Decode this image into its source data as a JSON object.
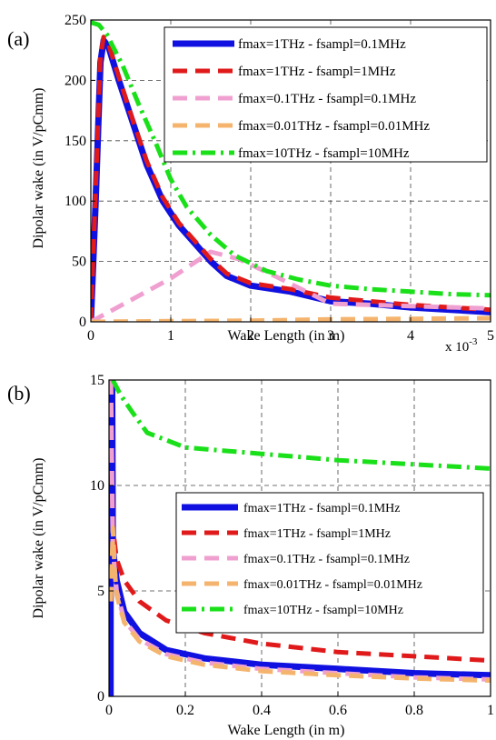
{
  "chart_data": [
    {
      "type": "line",
      "panel_label": "(a)",
      "xlabel": "Wake Length (in m)",
      "ylabel": "Dipolar wake (in  V/pCmm)",
      "x_multiplier": "x 10",
      "x_multiplier_exp": "-3",
      "xlim": [
        0,
        5
      ],
      "ylim": [
        0,
        250
      ],
      "xticks": [
        0,
        1,
        2,
        3,
        4,
        5
      ],
      "yticks": [
        0,
        50,
        100,
        150,
        200,
        250
      ],
      "grid": true,
      "legend_position": "top-right",
      "series": [
        {
          "name": "fmax=1THz - fsampl=0.1MHz",
          "color": "#1010e0",
          "style": "solid",
          "width": 7,
          "points": [
            [
              0,
              0
            ],
            [
              0.06,
              100
            ],
            [
              0.12,
              215
            ],
            [
              0.16,
              233
            ],
            [
              0.22,
              228
            ],
            [
              0.35,
              200
            ],
            [
              0.5,
              170
            ],
            [
              0.7,
              130
            ],
            [
              0.9,
              100
            ],
            [
              1.1,
              80
            ],
            [
              1.3,
              65
            ],
            [
              1.5,
              50
            ],
            [
              1.7,
              38
            ],
            [
              2,
              30
            ],
            [
              2.5,
              25
            ],
            [
              3,
              17
            ],
            [
              3.5,
              15
            ],
            [
              4,
              12
            ],
            [
              4.5,
              10
            ],
            [
              5,
              8
            ]
          ]
        },
        {
          "name": "fmax=1THz - fsampl=1MHz",
          "color": "#e01a1a",
          "style": "dash",
          "width": 5,
          "points": [
            [
              0,
              0
            ],
            [
              0.06,
              110
            ],
            [
              0.12,
              220
            ],
            [
              0.16,
              236
            ],
            [
              0.22,
              230
            ],
            [
              0.35,
              203
            ],
            [
              0.5,
              172
            ],
            [
              0.7,
              133
            ],
            [
              0.9,
              103
            ],
            [
              1.1,
              82
            ],
            [
              1.3,
              67
            ],
            [
              1.5,
              52
            ],
            [
              1.7,
              40
            ],
            [
              2,
              32
            ],
            [
              2.5,
              27
            ],
            [
              3,
              20
            ],
            [
              3.5,
              17
            ],
            [
              4,
              14
            ],
            [
              4.5,
              12
            ],
            [
              5,
              10
            ]
          ]
        },
        {
          "name": "fmax=0.1THz - fsampl=0.1MHz",
          "color": "#f0a0d0",
          "style": "dash",
          "width": 5,
          "points": [
            [
              0,
              0
            ],
            [
              1.0,
              36
            ],
            [
              1.5,
              58
            ],
            [
              1.85,
              52
            ],
            [
              2.3,
              38
            ],
            [
              3,
              15
            ],
            [
              4,
              13
            ],
            [
              5,
              11
            ]
          ]
        },
        {
          "name": "fmax=0.01THz - fsampl=0.01MHz",
          "color": "#f5b46e",
          "style": "dash",
          "width": 5,
          "points": [
            [
              0,
              0
            ],
            [
              1,
              0.5
            ],
            [
              2,
              1
            ],
            [
              3,
              2
            ],
            [
              4,
              2.5
            ],
            [
              5,
              3
            ]
          ]
        },
        {
          "name": "fmax=10THz - fsampl=10MHz",
          "color": "#19e019",
          "style": "dashdot",
          "width": 5,
          "points": [
            [
              0,
              248
            ],
            [
              0.1,
              246
            ],
            [
              0.2,
              238
            ],
            [
              0.4,
              212
            ],
            [
              0.6,
              180
            ],
            [
              0.8,
              150
            ],
            [
              1,
              118
            ],
            [
              1.2,
              95
            ],
            [
              1.5,
              72
            ],
            [
              1.8,
              55
            ],
            [
              2.2,
              42
            ],
            [
              2.6,
              35
            ],
            [
              3,
              30
            ],
            [
              3.5,
              27
            ],
            [
              4,
              25
            ],
            [
              4.5,
              23
            ],
            [
              5,
              22
            ]
          ]
        }
      ]
    },
    {
      "type": "line",
      "panel_label": "(b)",
      "xlabel": "Wake Length (in m)",
      "ylabel": "Dipolar wake (in  V/pCmm)",
      "xlim": [
        0,
        1
      ],
      "ylim": [
        0,
        15
      ],
      "xticks": [
        0,
        0.2,
        0.4,
        0.6,
        0.8,
        1
      ],
      "yticks": [
        0,
        5,
        10,
        15
      ],
      "grid": true,
      "legend_position": "center-right",
      "series": [
        {
          "name": "fmax=1THz - fsampl=0.1MHz",
          "color": "#1010e0",
          "style": "solid",
          "width": 7,
          "points": [
            [
              0.004,
              0
            ],
            [
              0.004,
              15
            ],
            [
              0.008,
              15
            ],
            [
              0.01,
              7
            ],
            [
              0.02,
              5.5
            ],
            [
              0.04,
              4
            ],
            [
              0.08,
              3
            ],
            [
              0.15,
              2.2
            ],
            [
              0.25,
              1.8
            ],
            [
              0.4,
              1.5
            ],
            [
              0.6,
              1.3
            ],
            [
              0.8,
              1.1
            ],
            [
              1,
              1.0
            ]
          ]
        },
        {
          "name": "fmax=1THz - fsampl=1MHz",
          "color": "#e01a1a",
          "style": "dash",
          "width": 5,
          "points": [
            [
              0.005,
              15
            ],
            [
              0.01,
              8
            ],
            [
              0.02,
              6.5
            ],
            [
              0.04,
              5.5
            ],
            [
              0.08,
              4.5
            ],
            [
              0.15,
              3.6
            ],
            [
              0.25,
              3
            ],
            [
              0.4,
              2.5
            ],
            [
              0.6,
              2.1
            ],
            [
              0.8,
              1.9
            ],
            [
              1,
              1.7
            ]
          ]
        },
        {
          "name": "fmax=0.1THz - fsampl=0.1MHz",
          "color": "#f0a0d0",
          "style": "dash",
          "width": 5,
          "points": [
            [
              0.005,
              15
            ],
            [
              0.01,
              7
            ],
            [
              0.02,
              5
            ],
            [
              0.04,
              3.6
            ],
            [
              0.08,
              2.7
            ],
            [
              0.15,
              2
            ],
            [
              0.25,
              1.6
            ],
            [
              0.4,
              1.3
            ],
            [
              0.6,
              1.1
            ],
            [
              0.8,
              0.9
            ],
            [
              1,
              0.8
            ]
          ]
        },
        {
          "name": "fmax=0.01THz - fsampl=0.01MHz",
          "color": "#f5b46e",
          "style": "dash",
          "width": 5,
          "points": [
            [
              0.005,
              4.5
            ],
            [
              0.01,
              8
            ],
            [
              0.015,
              6
            ],
            [
              0.02,
              4.8
            ],
            [
              0.04,
              3.5
            ],
            [
              0.08,
              2.6
            ],
            [
              0.15,
              1.9
            ],
            [
              0.25,
              1.5
            ],
            [
              0.4,
              1.2
            ],
            [
              0.6,
              1.0
            ],
            [
              0.8,
              0.85
            ],
            [
              1,
              0.75
            ]
          ]
        },
        {
          "name": "fmax=10THz - fsampl=10MHz",
          "color": "#19e019",
          "style": "dashdot",
          "width": 5,
          "points": [
            [
              0.01,
              15
            ],
            [
              0.03,
              14.3
            ],
            [
              0.06,
              13.5
            ],
            [
              0.1,
              12.5
            ],
            [
              0.2,
              11.8
            ],
            [
              0.4,
              11.5
            ],
            [
              0.6,
              11.2
            ],
            [
              0.8,
              11
            ],
            [
              1,
              10.8
            ]
          ]
        }
      ]
    }
  ]
}
